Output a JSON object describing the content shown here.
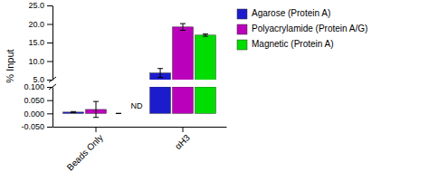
{
  "chart_data": [
    {
      "type": "bar",
      "ylabel": "% Input",
      "categories": [
        null,
        null
      ],
      "series": [
        {
          "name": "Agarose (Protein A)",
          "color": "#1C1CCC",
          "values": [
            null,
            6.8
          ],
          "errors": [
            null,
            1.2
          ]
        },
        {
          "name": "Polyacrylamide (Protein A/G)",
          "color": "#BB00BB",
          "values": [
            null,
            19.2
          ],
          "errors": [
            null,
            0.9
          ]
        },
        {
          "name": "Magnetic (Protein A)",
          "color": "#00DD00",
          "values": [
            null,
            17.0
          ],
          "errors": [
            null,
            0.3
          ]
        }
      ],
      "ylim": [
        5.0,
        25.0
      ],
      "yticks": [
        {
          "value": 5.0,
          "label": "5.0"
        },
        {
          "value": 10.0,
          "label": "10.0"
        },
        {
          "value": 15.0,
          "label": "15.0"
        },
        {
          "value": 20.0,
          "label": "20.0"
        },
        {
          "value": 25.0,
          "label": "25.0"
        }
      ],
      "tick_labels": "y",
      "legend": "right"
    },
    {
      "type": "bar",
      "categories": [
        "Beads Only",
        "αH3"
      ],
      "series": [
        {
          "color": "#1C1CCC",
          "values": [
            0.005,
            0.1
          ],
          "errors": [
            0.002,
            null
          ]
        },
        {
          "color": "#BB00BB",
          "values": [
            0.015,
            0.1
          ],
          "errors": [
            0.03,
            null
          ]
        },
        {
          "color": "#00DD00",
          "values": [
            0.0,
            0.1
          ],
          "errors": [
            0.0,
            null
          ]
        }
      ],
      "ylim": [
        -0.05,
        0.1
      ],
      "yticks": [
        {
          "value": -0.05,
          "label": "-0.050"
        },
        {
          "value": 0.0,
          "label": "0.000"
        },
        {
          "value": 0.05,
          "label": "0.050"
        },
        {
          "value": 0.1,
          "label": "0.100"
        }
      ],
      "annotation": "ND"
    }
  ]
}
